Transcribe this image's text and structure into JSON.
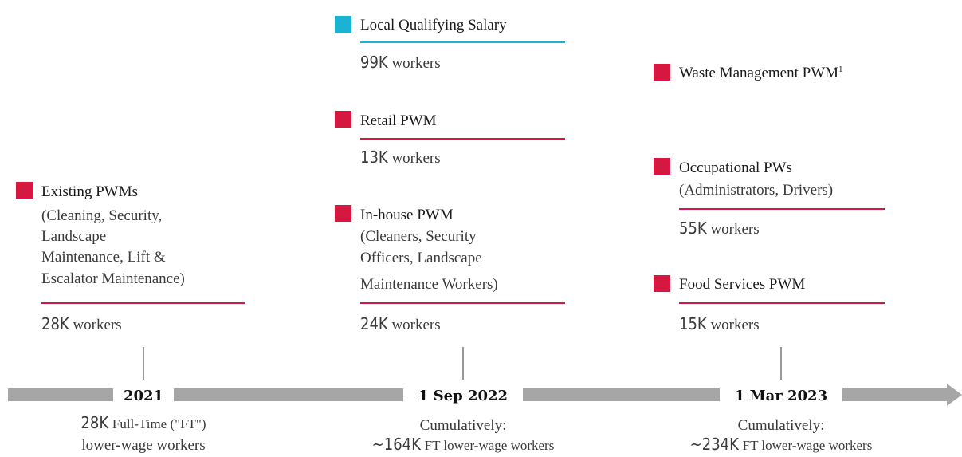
{
  "columns": [
    {
      "items": [
        {
          "label": "Existing PWMs",
          "color": "#d6173f",
          "details": [
            "(Cleaning, Security,",
            "Landscape",
            "Maintenance, Lift &",
            "Escalator Maintenance)"
          ],
          "count": "28K",
          "unit": "workers"
        }
      ],
      "date": "2021",
      "summary": {
        "count": "28K",
        "text": "Full-Time (\"FT\")",
        "text2": "lower-wage workers"
      }
    },
    {
      "items": [
        {
          "label": "Local Qualifying Salary",
          "color": "#1ab3d3",
          "count": "99K",
          "unit": "workers"
        },
        {
          "label": "Retail PWM",
          "color": "#d6173f",
          "count": "13K",
          "unit": "workers"
        },
        {
          "label": "In-house PWM",
          "color": "#d6173f",
          "details": [
            "(Cleaners, Security",
            "Officers, Landscape",
            "Maintenance Workers)"
          ],
          "count": "24K",
          "unit": "workers"
        }
      ],
      "date": "1 Sep 2022",
      "summary": {
        "prefix": "Cumulatively:",
        "count": "~164K",
        "text": "FT lower-wage workers"
      }
    },
    {
      "items": [
        {
          "label": "Waste Management PWM",
          "footnote": "1",
          "color": "#d6173f"
        },
        {
          "label": "Occupational PWs",
          "color": "#d6173f",
          "details": [
            "(Administrators, Drivers)"
          ],
          "count": "55K",
          "unit": "workers"
        },
        {
          "label": "Food Services PWM",
          "color": "#d6173f",
          "count": "15K",
          "unit": "workers"
        }
      ],
      "date": "1 Mar 2023",
      "summary": {
        "prefix": "Cumulatively:",
        "count": "~234K",
        "text": "FT lower-wage workers"
      }
    }
  ]
}
